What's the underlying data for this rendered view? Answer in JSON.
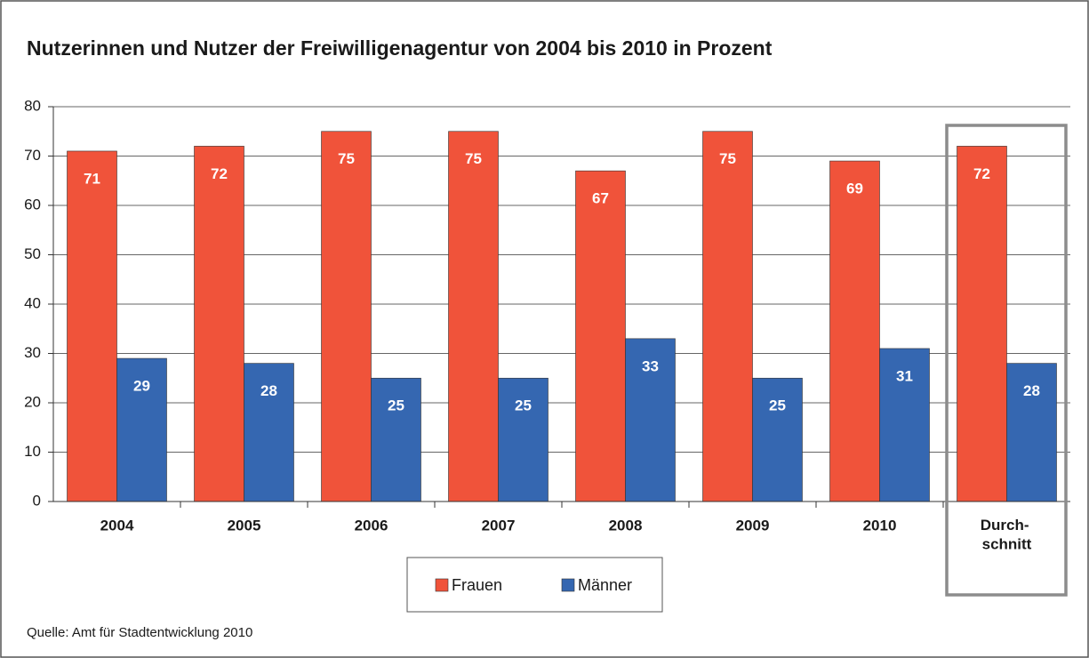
{
  "chart_data": {
    "type": "bar",
    "title": "Nutzerinnen und Nutzer der Freiwilligenagentur von 2004 bis 2010 in Prozent",
    "categories": [
      "2004",
      "2005",
      "2006",
      "2007",
      "2008",
      "2009",
      "2010",
      "Durch-\nschnitt"
    ],
    "series": [
      {
        "name": "Frauen",
        "color": "#f0533a",
        "values": [
          71,
          72,
          75,
          75,
          67,
          75,
          69,
          72
        ]
      },
      {
        "name": "Männer",
        "color": "#3567b1",
        "values": [
          29,
          28,
          25,
          25,
          33,
          25,
          31,
          28
        ]
      }
    ],
    "ylim": [
      0,
      80
    ],
    "yticks": [
      0,
      10,
      20,
      30,
      40,
      50,
      60,
      70,
      80
    ],
    "grid": true,
    "legend": "bottom",
    "source": "Quelle: Amt für Stadtentwicklung 2010"
  }
}
